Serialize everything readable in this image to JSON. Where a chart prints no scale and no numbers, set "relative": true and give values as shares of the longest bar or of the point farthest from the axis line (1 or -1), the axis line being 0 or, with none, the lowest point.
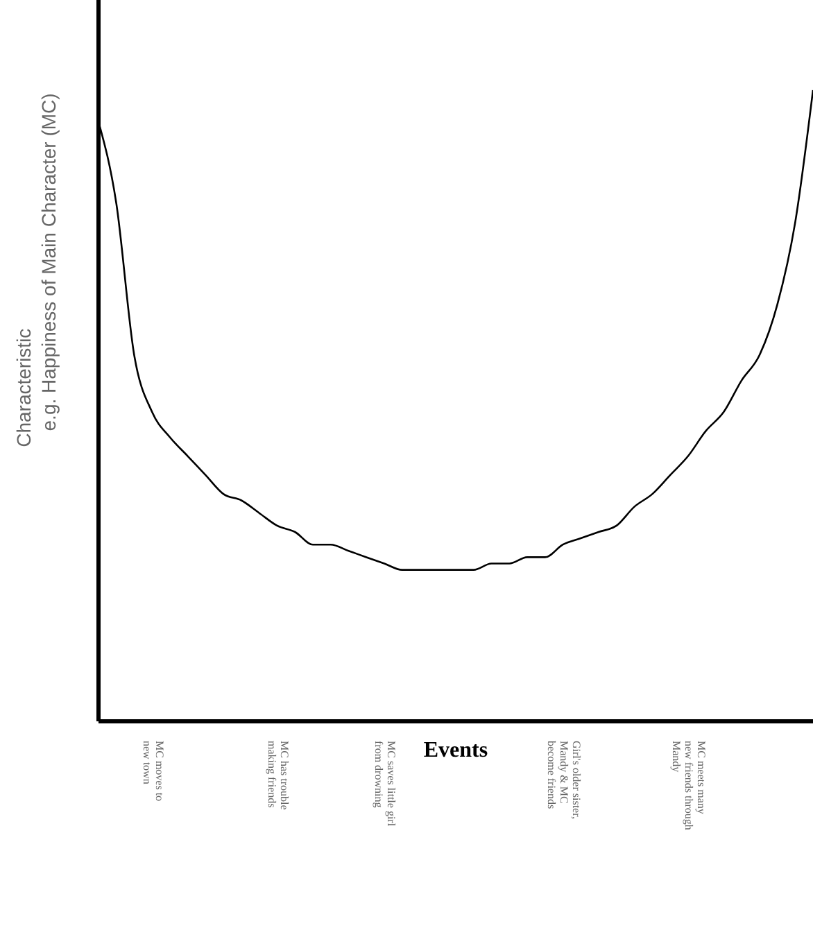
{
  "chart_data": {
    "type": "line",
    "relative": true,
    "xlabel": "Events",
    "ylabel": "Characteristic\n   e.g. Happiness of Main Character (MC)",
    "color": "#000000",
    "marker": "none",
    "grid": false,
    "legend": false,
    "tick_labels": "x",
    "categories": [
      null,
      null,
      null,
      "MC moves to\nnew town",
      null,
      null,
      null,
      null,
      null,
      null,
      "MC has trouble\nmaking friends",
      null,
      null,
      null,
      null,
      null,
      "MC saves little girl\nfrom drowning",
      null,
      null,
      null,
      null,
      null,
      null,
      null,
      null,
      null,
      "Girl's older sister,\nMandy & MC\nbecome friends",
      null,
      null,
      null,
      null,
      null,
      null,
      "MC meets many\nnew friends through\nMandy",
      null,
      null,
      null,
      null,
      null,
      null,
      null
    ],
    "values": [
      0.95,
      0.82,
      0.58,
      0.49,
      0.45,
      0.42,
      0.39,
      0.36,
      0.35,
      0.33,
      0.31,
      0.3,
      0.28,
      0.28,
      0.27,
      0.26,
      0.25,
      0.24,
      0.24,
      0.24,
      0.24,
      0.24,
      0.25,
      0.25,
      0.26,
      0.26,
      0.28,
      0.29,
      0.3,
      0.31,
      0.34,
      0.36,
      0.39,
      0.42,
      0.46,
      0.49,
      0.54,
      0.58,
      0.66,
      0.79,
      1.0
    ]
  }
}
